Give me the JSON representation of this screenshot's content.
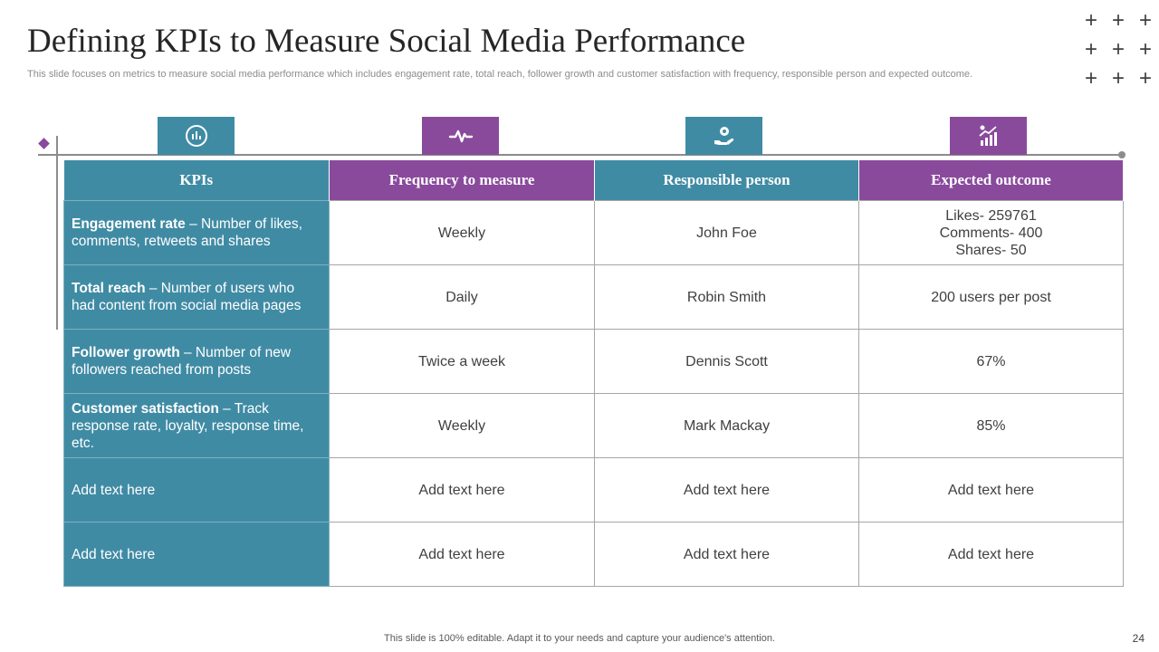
{
  "title": "Defining KPIs to Measure Social Media Performance",
  "subtitle": "This slide focuses on metrics to measure social media performance which includes engagement rate, total reach, follower growth and customer satisfaction with frequency, responsible person and expected outcome.",
  "decor": {
    "plus_symbol": "+"
  },
  "icons": [
    "chart-circle-icon",
    "pulse-icon",
    "gear-hand-icon",
    "growth-chart-icon"
  ],
  "colors": {
    "teal": "#408ba4",
    "purple": "#8a4a9c"
  },
  "table": {
    "headers": [
      "KPIs",
      "Frequency to measure",
      "Responsible person",
      "Expected outcome"
    ],
    "rows": [
      {
        "kpi_bold": "Engagement rate",
        "kpi_desc": " – Number of likes, comments, retweets and shares",
        "frequency": "Weekly",
        "person": "John Foe",
        "outcome_lines": [
          "Likes- 259761",
          "Comments- 400",
          "Shares- 50"
        ]
      },
      {
        "kpi_bold": "Total reach",
        "kpi_desc": " – Number of users who had content from social media pages",
        "frequency": "Daily",
        "person": "Robin Smith",
        "outcome": "200 users per post"
      },
      {
        "kpi_bold": "Follower growth",
        "kpi_desc": " – Number of new followers reached from posts",
        "frequency": "Twice a week",
        "person": "Dennis Scott",
        "outcome": "67%"
      },
      {
        "kpi_bold": "Customer satisfaction",
        "kpi_desc": " – Track response rate, loyalty, response time, etc.",
        "frequency": "Weekly",
        "person": "Mark Mackay",
        "outcome": "85%"
      },
      {
        "kpi": "Add text here",
        "frequency": "Add text here",
        "person": "Add text here",
        "outcome": "Add text here"
      },
      {
        "kpi": "Add text here",
        "frequency": "Add text here",
        "person": "Add text here",
        "outcome": "Add text here"
      }
    ]
  },
  "footer": "This slide is 100% editable. Adapt it to your needs and capture your audience's attention.",
  "page_number": "24"
}
